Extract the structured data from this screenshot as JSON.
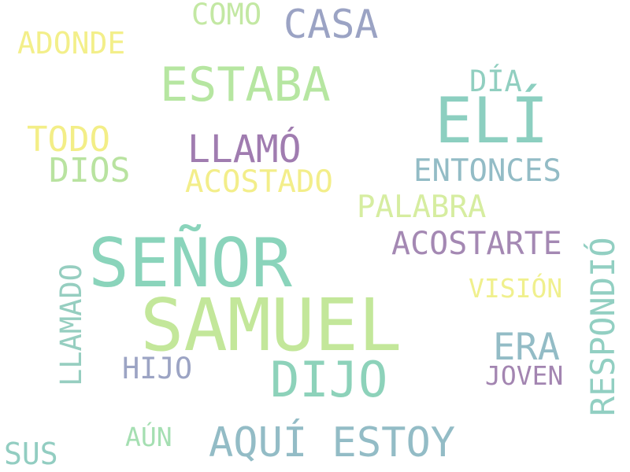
{
  "words": [
    {
      "text": "SAMUEL",
      "color": "#c3e79a"
    },
    {
      "text": "SEÑOR",
      "color": "#8ad4bb"
    },
    {
      "text": "ELÍ",
      "color": "#8ccfc0"
    },
    {
      "text": "ESTABA",
      "color": "#b6e6a1"
    },
    {
      "text": "DIJO",
      "color": "#8dd2ba"
    },
    {
      "text": "AQUÍ ESTOY",
      "color": "#93bcc6"
    },
    {
      "text": "CASA",
      "color": "#9ba3c4"
    },
    {
      "text": "LLAMÓ",
      "color": "#a07cb0"
    },
    {
      "text": "RESPONDIÓ",
      "color": "#92cfc2"
    },
    {
      "text": "LLAMADO",
      "color": "#96cec0"
    },
    {
      "text": "ERA",
      "color": "#93bcc6"
    },
    {
      "text": "ACOSTARTE",
      "color": "#a488b3"
    },
    {
      "text": "TODO",
      "color": "#f3ee87"
    },
    {
      "text": "DIOS",
      "color": "#b9e3a0"
    },
    {
      "text": "ENTONCES",
      "color": "#93bcc6"
    },
    {
      "text": "ACOSTADO",
      "color": "#f3ee8a"
    },
    {
      "text": "PALABRA",
      "color": "#d6eda0"
    },
    {
      "text": "ADONDE",
      "color": "#f3ef8a"
    },
    {
      "text": "COMO",
      "color": "#c3e8a3"
    },
    {
      "text": "DÍA",
      "color": "#91cfc0"
    },
    {
      "text": "HIJO",
      "color": "#9ca4c4"
    },
    {
      "text": "VISIÓN",
      "color": "#f0f08d"
    },
    {
      "text": "JOVEN",
      "color": "#a385b1"
    },
    {
      "text": "SUS",
      "color": "#92cdc1"
    },
    {
      "text": "AÚN",
      "color": "#a5dfb2"
    }
  ]
}
